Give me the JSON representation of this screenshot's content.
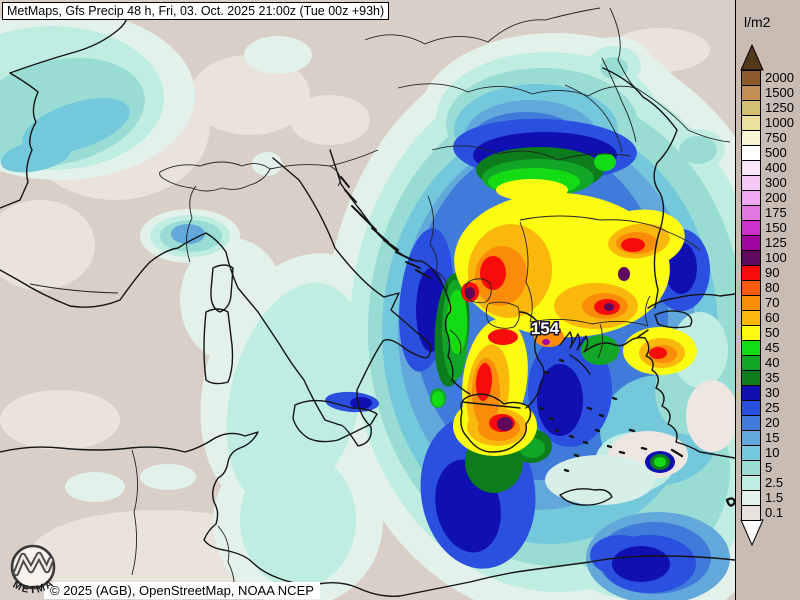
{
  "header": {
    "title": "MetMaps, Gfs Precip 48 h, Fri, 03. Oct. 2025 21:00z (Tue 00z +93h)"
  },
  "footer": {
    "copyright": "© 2025 (AGB), OpenStreetMap, NOAA NCEP"
  },
  "logo": {
    "text": "METMAPS"
  },
  "map": {
    "max_label": "154",
    "land_color": "#D9CFC6",
    "light_patch_color": "#EAE3DC",
    "coast_color": "#141414"
  },
  "legend": {
    "unit": "l/m2",
    "values": [
      "2000",
      "1500",
      "1250",
      "1000",
      "750",
      "500",
      "400",
      "300",
      "200",
      "175",
      "150",
      "125",
      "100",
      "90",
      "80",
      "70",
      "60",
      "50",
      "45",
      "40",
      "35",
      "30",
      "25",
      "20",
      "15",
      "10",
      "5",
      "2.5",
      "1.5",
      "0.1"
    ],
    "colors": [
      "#8C5A2B",
      "#C28E55",
      "#D3C070",
      "#EBE09C",
      "#F9F5D2",
      "#FFFFFF",
      "#F9E6F9",
      "#F5C8F5",
      "#F0A8F0",
      "#E277E2",
      "#CE30CE",
      "#A204A2",
      "#5E085E",
      "#F70C0C",
      "#F95C08",
      "#FA8C0A",
      "#FBB80C",
      "#FCFC10",
      "#14DC14",
      "#12A626",
      "#0C7C1C",
      "#1010B2",
      "#2B4FDE",
      "#3F7CD9",
      "#62A8DB",
      "#74C8DC",
      "#98DCD4",
      "#BFEDE2",
      "#E2F2EA",
      "#E7E3DC"
    ],
    "arrow_top_color": "#54361A",
    "arrow_bottom_color": "#FFFFFF",
    "panel_color": "#C9BDB3"
  }
}
